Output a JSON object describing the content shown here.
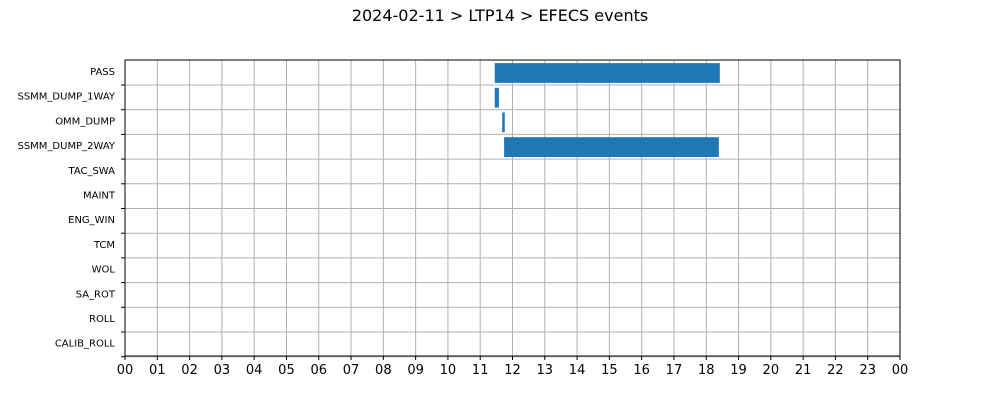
{
  "chart_data": {
    "type": "bar",
    "orientation": "horizontal",
    "title": "2024-02-11 > LTP14 > EFECS events",
    "xlabel": "",
    "ylabel": "",
    "x_unit": "hour of day",
    "xlim": [
      0,
      24
    ],
    "xticks": [
      "00",
      "01",
      "02",
      "03",
      "04",
      "05",
      "06",
      "07",
      "08",
      "09",
      "10",
      "11",
      "12",
      "13",
      "14",
      "15",
      "16",
      "17",
      "18",
      "19",
      "20",
      "21",
      "22",
      "23",
      "00"
    ],
    "categories": [
      "PASS",
      "SSMM_DUMP_1WAY",
      "OMM_DUMP",
      "SSMM_DUMP_2WAY",
      "TAC_SWA",
      "MAINT",
      "ENG_WIN",
      "TCM",
      "WOL",
      "SA_ROT",
      "ROLL",
      "CALIB_ROLL"
    ],
    "series": [
      {
        "color": "#1f77b4",
        "intervals": [
          {
            "category": "PASS",
            "start": 11.45,
            "end": 18.42
          },
          {
            "category": "SSMM_DUMP_1WAY",
            "start": 11.45,
            "end": 11.58
          },
          {
            "category": "OMM_DUMP",
            "start": 11.68,
            "end": 11.76
          },
          {
            "category": "SSMM_DUMP_2WAY",
            "start": 11.74,
            "end": 18.39
          }
        ]
      }
    ],
    "grid": true
  }
}
